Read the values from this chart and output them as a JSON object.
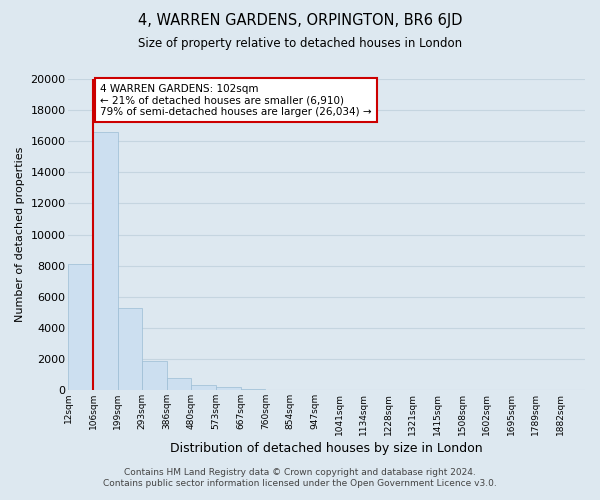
{
  "title": "4, WARREN GARDENS, ORPINGTON, BR6 6JD",
  "subtitle": "Size of property relative to detached houses in London",
  "xlabel": "Distribution of detached houses by size in London",
  "ylabel": "Number of detached properties",
  "bar_values": [
    8100,
    16600,
    5300,
    1850,
    750,
    300,
    200,
    100,
    0,
    0,
    0,
    0,
    0,
    0,
    0,
    0,
    0,
    0,
    0,
    0
  ],
  "bar_labels": [
    "12sqm",
    "106sqm",
    "199sqm",
    "293sqm",
    "386sqm",
    "480sqm",
    "573sqm",
    "667sqm",
    "760sqm",
    "854sqm",
    "947sqm",
    "1041sqm",
    "1134sqm",
    "1228sqm",
    "1321sqm",
    "1415sqm",
    "1508sqm",
    "1602sqm",
    "1695sqm",
    "1789sqm",
    "1882sqm"
  ],
  "bar_color": "#ccdff0",
  "bar_edge_color": "#9bbdd4",
  "vline_color": "#cc0000",
  "annotation_text": "4 WARREN GARDENS: 102sqm\n← 21% of detached houses are smaller (6,910)\n79% of semi-detached houses are larger (26,034) →",
  "annotation_box_color": "#ffffff",
  "annotation_box_edge": "#cc0000",
  "ylim": [
    0,
    20000
  ],
  "yticks": [
    0,
    2000,
    4000,
    6000,
    8000,
    10000,
    12000,
    14000,
    16000,
    18000,
    20000
  ],
  "bg_color": "#dde8f0",
  "grid_color": "#c5d5e0",
  "footer_line1": "Contains HM Land Registry data © Crown copyright and database right 2024.",
  "footer_line2": "Contains public sector information licensed under the Open Government Licence v3.0."
}
